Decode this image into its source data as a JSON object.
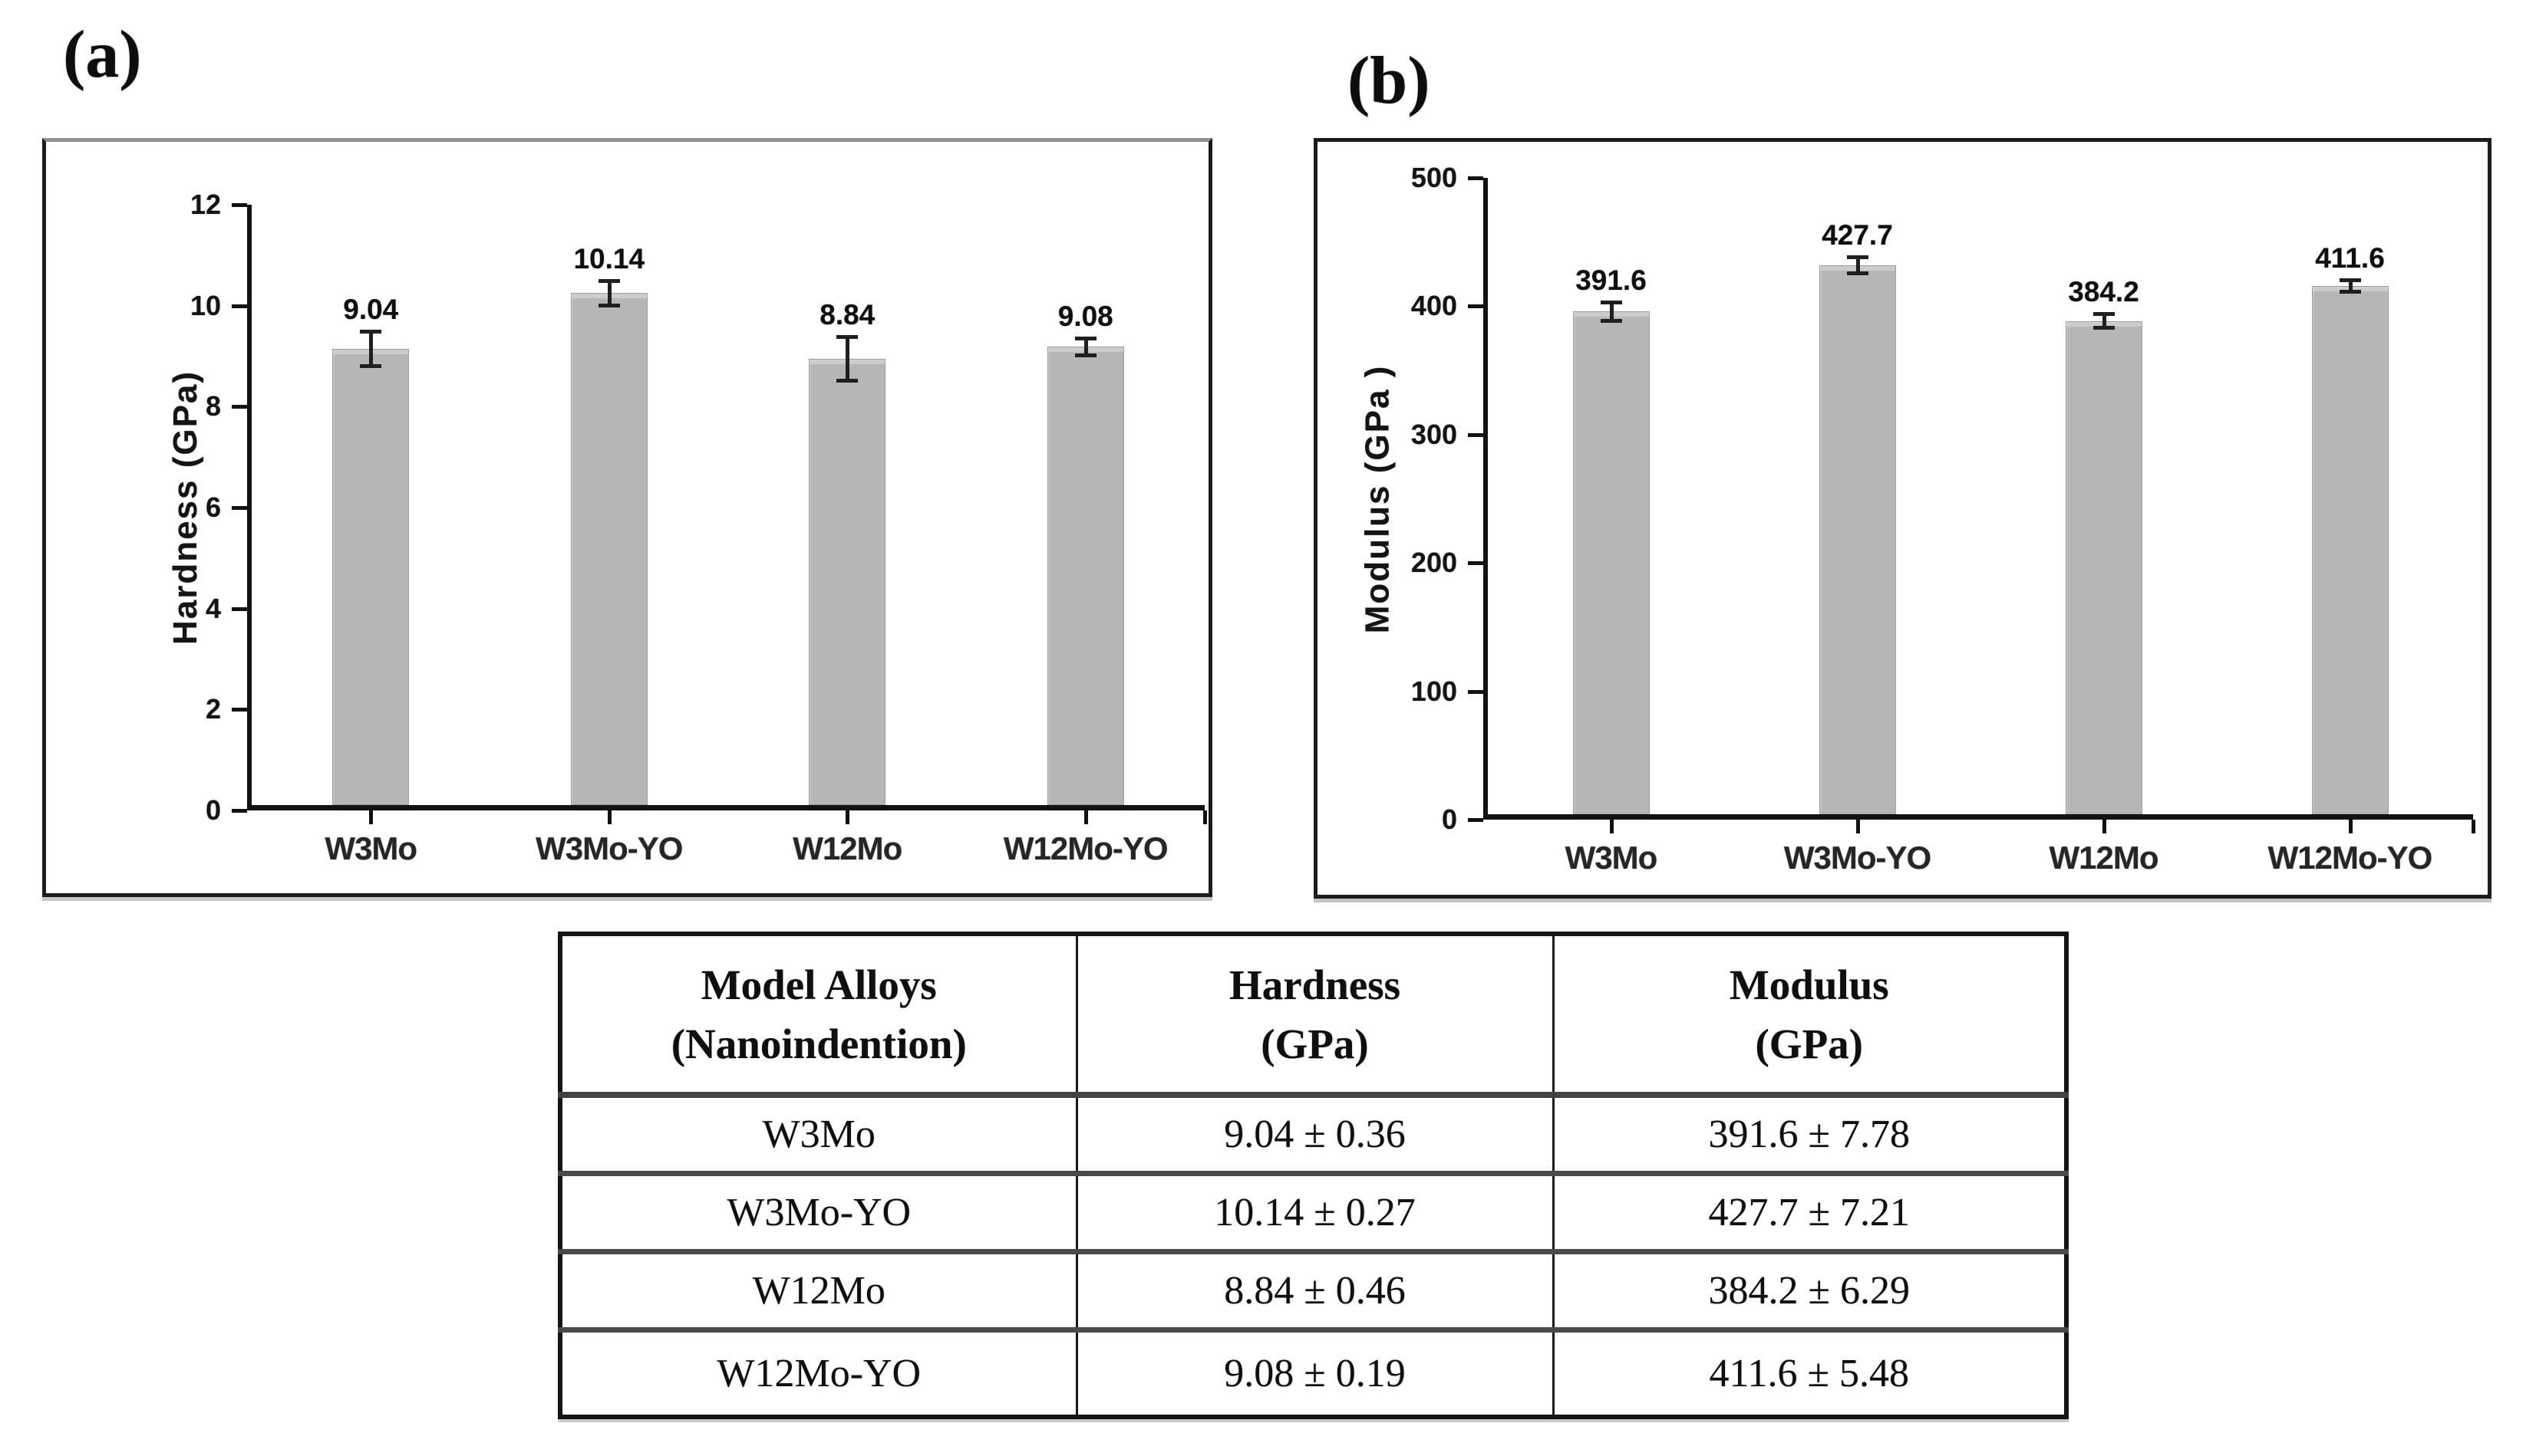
{
  "figure": {
    "panel_a_label": "(a)",
    "panel_b_label": "(b)"
  },
  "chart_data": [
    {
      "id": "hardness",
      "type": "bar",
      "panel": "(a)",
      "title": "",
      "xlabel": "",
      "ylabel": "Hardness (GPa)",
      "categories": [
        "W3Mo",
        "W3Mo-YO",
        "W12Mo",
        "W12Mo-YO"
      ],
      "values": [
        9.04,
        10.14,
        8.84,
        9.08
      ],
      "errors": [
        0.36,
        0.27,
        0.46,
        0.19
      ],
      "value_labels": [
        "9.04",
        "10.14",
        "8.84",
        "9.08"
      ],
      "ylim": [
        0,
        12
      ],
      "yticks": [
        0,
        2,
        4,
        6,
        8,
        10,
        12
      ],
      "grid": false,
      "legend": "none",
      "bar_color": "#b6b6b6"
    },
    {
      "id": "modulus",
      "type": "bar",
      "panel": "(b)",
      "title": "",
      "xlabel": "",
      "ylabel": "Modulus (GPa )",
      "categories": [
        "W3Mo",
        "W3Mo-YO",
        "W12Mo",
        "W12Mo-YO"
      ],
      "values": [
        391.6,
        427.7,
        384.2,
        411.6
      ],
      "errors": [
        7.78,
        7.21,
        6.29,
        5.48
      ],
      "value_labels": [
        "391.6",
        "427.7",
        "384.2",
        "411.6"
      ],
      "ylim": [
        0,
        500
      ],
      "yticks": [
        0,
        100,
        200,
        300,
        400,
        500
      ],
      "grid": false,
      "legend": "none",
      "bar_color": "#b6b6b6"
    }
  ],
  "table": {
    "headers": [
      {
        "line1": "Model Alloys",
        "line2": "(Nanoindention)"
      },
      {
        "line1": "Hardness",
        "line2": "(GPa)"
      },
      {
        "line1": "Modulus",
        "line2": "(GPa)"
      }
    ],
    "rows": [
      {
        "alloy": "W3Mo",
        "hardness": "9.04 ± 0.36",
        "modulus": "391.6 ± 7.78"
      },
      {
        "alloy": "W3Mo-YO",
        "hardness": "10.14 ± 0.27",
        "modulus": "427.7 ± 7.21"
      },
      {
        "alloy": "W12Mo",
        "hardness": "8.84 ± 0.46",
        "modulus": "384.2 ± 6.29"
      },
      {
        "alloy": "W12Mo-YO",
        "hardness": "9.08 ± 0.19",
        "modulus": "411.6 ± 5.48"
      }
    ]
  },
  "colors": {
    "bar_fill": "#b6b6b6",
    "bar_top_edge": "#cdcdcd",
    "axis": "#121212",
    "text": "#161616",
    "panel_border": "#1c1c1c",
    "table_border": "#141414",
    "row_separator": "#4a4a4a",
    "background": "#ffffff"
  }
}
